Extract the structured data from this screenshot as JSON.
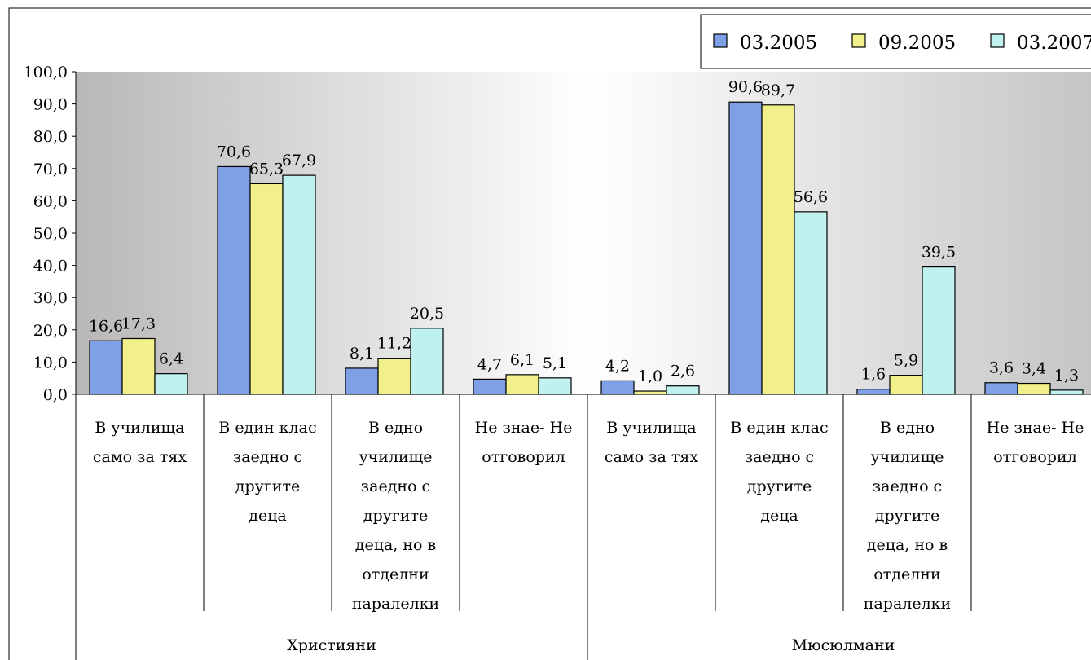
{
  "chart_data": {
    "type": "bar",
    "ylim": [
      0,
      100
    ],
    "yticks": [
      "0,0",
      "10,0",
      "20,0",
      "30,0",
      "40,0",
      "50,0",
      "60,0",
      "70,0",
      "80,0",
      "90,0",
      "100,0"
    ],
    "groups": [
      {
        "label": "Християни",
        "categories": [
          {
            "lines": [
              "В училища",
              "само за тях"
            ]
          },
          {
            "lines": [
              "В един клас",
              "заедно с",
              "другите",
              "деца"
            ]
          },
          {
            "lines": [
              "В едно",
              "училище",
              "заедно с",
              "другите",
              "деца, но в",
              "отделни",
              "паралелки"
            ]
          },
          {
            "lines": [
              "Не знае- Не",
              "отговорил"
            ]
          }
        ]
      },
      {
        "label": "Мюсюлмани",
        "categories": [
          {
            "lines": [
              "В училища",
              "само за тях"
            ]
          },
          {
            "lines": [
              "В един клас",
              "заедно с",
              "другите",
              "деца"
            ]
          },
          {
            "lines": [
              "В едно",
              "училище",
              "заедно с",
              "другите",
              "деца, но в",
              "отделни",
              "паралелки"
            ]
          },
          {
            "lines": [
              "Не знае- Не",
              "отговорил"
            ]
          }
        ]
      }
    ],
    "series": [
      {
        "name": "03.2005",
        "color": "#7f9fe6",
        "values": [
          16.6,
          70.6,
          8.1,
          4.7,
          4.2,
          90.6,
          1.6,
          3.6
        ],
        "labels": [
          "16,6",
          "70,6",
          "8,1",
          "4,7",
          "4,2",
          "90,6",
          "1,6",
          "3,6"
        ]
      },
      {
        "name": "09.2005",
        "color": "#f2f08a",
        "values": [
          17.3,
          65.3,
          11.2,
          6.1,
          1.0,
          89.7,
          5.9,
          3.4
        ],
        "labels": [
          "17,3",
          "65,3",
          "11,2",
          "6,1",
          "1,0",
          "89,7",
          "5,9",
          "3,4"
        ]
      },
      {
        "name": "03.2007",
        "color": "#bff1ef",
        "values": [
          6.4,
          67.9,
          20.5,
          5.1,
          2.6,
          56.6,
          39.5,
          1.3
        ],
        "labels": [
          "6,4",
          "67,9",
          "20,5",
          "5,1",
          "2,6",
          "56,6",
          "39,5",
          "1,3"
        ]
      }
    ],
    "legend_position": "top-right",
    "grid": false
  }
}
